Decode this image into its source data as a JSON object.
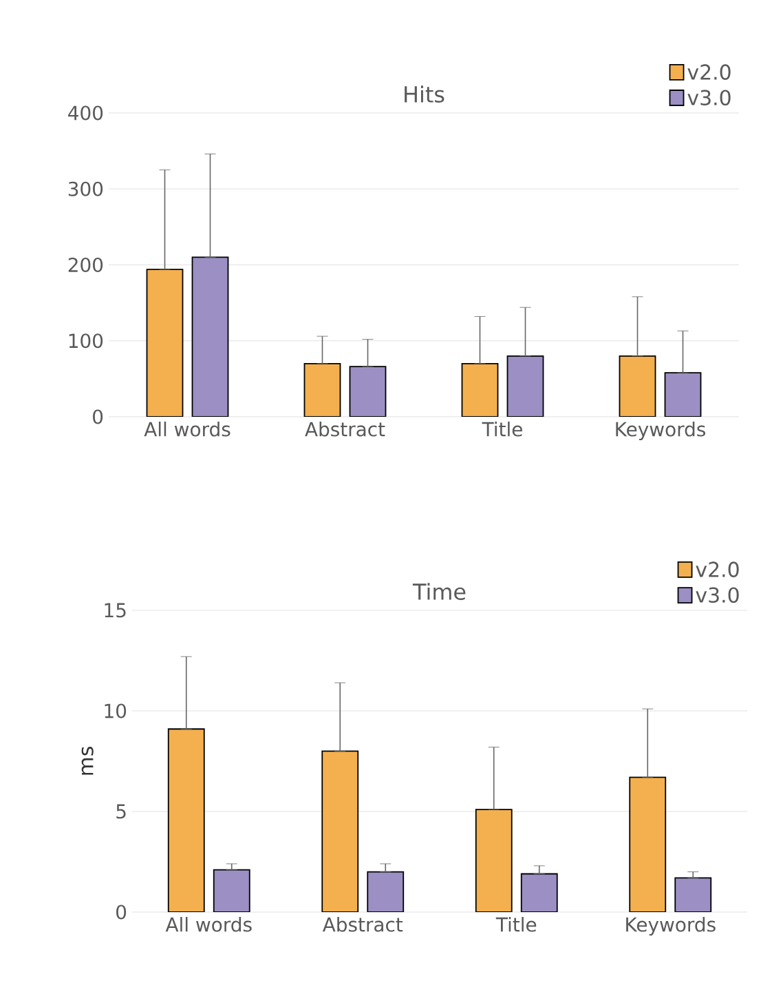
{
  "chart_data": [
    {
      "type": "bar",
      "title": "Hits",
      "categories": [
        "All words",
        "Abstract",
        "Title",
        "Keywords"
      ],
      "series": [
        {
          "name": "v2.0",
          "color": "#f4b04e",
          "values": [
            194,
            70,
            70,
            80
          ],
          "errors": [
            [
              194,
              325
            ],
            [
              70,
              106
            ],
            [
              70,
              132
            ],
            [
              80,
              158
            ]
          ]
        },
        {
          "name": "v3.0",
          "color": "#9b8fc4",
          "values": [
            210,
            66,
            80,
            58
          ],
          "errors": [
            [
              210,
              346
            ],
            [
              66,
              102
            ],
            [
              80,
              144
            ],
            [
              58,
              113
            ]
          ]
        }
      ],
      "ylim": [
        0,
        400
      ],
      "yticks": [
        0,
        100,
        200,
        300,
        400
      ],
      "grid": "y",
      "legend": "top right"
    },
    {
      "type": "bar",
      "title": "Time",
      "ylabel": "ms",
      "categories": [
        "All words",
        "Abstract",
        "Title",
        "Keywords"
      ],
      "series": [
        {
          "name": "v2.0",
          "color": "#f4b04e",
          "values": [
            9.1,
            8.0,
            5.1,
            6.7
          ],
          "errors": [
            [
              9.1,
              12.7
            ],
            [
              8.0,
              11.4
            ],
            [
              5.1,
              8.2
            ],
            [
              6.7,
              10.1
            ]
          ]
        },
        {
          "name": "v3.0",
          "color": "#9b8fc4",
          "values": [
            2.1,
            2.0,
            1.9,
            1.7
          ],
          "errors": [
            [
              2.1,
              2.4
            ],
            [
              2.0,
              2.4
            ],
            [
              1.9,
              2.3
            ],
            [
              1.7,
              2.0
            ]
          ]
        }
      ],
      "ylim": [
        0,
        15
      ],
      "yticks": [
        0,
        5,
        10,
        15
      ],
      "grid": "y",
      "legend": "top right"
    }
  ]
}
